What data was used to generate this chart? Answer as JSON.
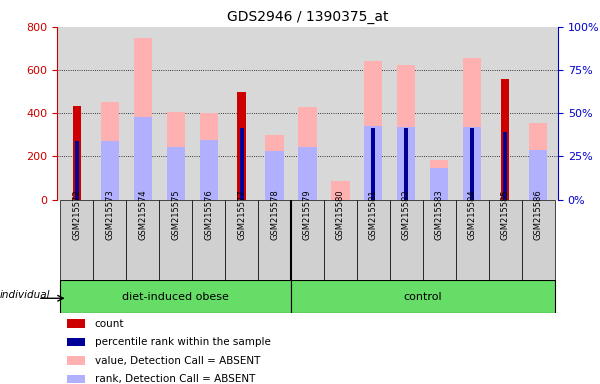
{
  "title": "GDS2946 / 1390375_at",
  "categories": [
    "GSM215572",
    "GSM215573",
    "GSM215574",
    "GSM215575",
    "GSM215576",
    "GSM215577",
    "GSM215578",
    "GSM215579",
    "GSM215580",
    "GSM215581",
    "GSM215582",
    "GSM215583",
    "GSM215584",
    "GSM215585",
    "GSM215586"
  ],
  "groups": [
    {
      "label": "diet-induced obese",
      "start": 0,
      "end": 6
    },
    {
      "label": "control",
      "start": 7,
      "end": 14
    }
  ],
  "count_values": [
    435,
    0,
    0,
    0,
    0,
    500,
    0,
    0,
    0,
    0,
    0,
    0,
    0,
    560,
    0
  ],
  "percentile_values": [
    270,
    0,
    0,
    0,
    0,
    330,
    0,
    0,
    0,
    330,
    330,
    0,
    330,
    315,
    0
  ],
  "absent_value_bars": [
    0,
    450,
    750,
    405,
    400,
    0,
    300,
    430,
    85,
    640,
    625,
    185,
    655,
    0,
    355
  ],
  "absent_rank_bars": [
    0,
    270,
    385,
    245,
    275,
    0,
    225,
    245,
    0,
    340,
    335,
    145,
    335,
    0,
    230
  ],
  "ylim_left": [
    0,
    800
  ],
  "ylim_right": [
    0,
    100
  ],
  "yticks_left": [
    0,
    200,
    400,
    600,
    800
  ],
  "yticks_right": [
    0,
    25,
    50,
    75,
    100
  ],
  "left_axis_color": "#cc0000",
  "right_axis_color": "#0000cc",
  "count_color": "#cc0000",
  "percentile_color": "#000099",
  "absent_value_color": "#ffb0b0",
  "absent_rank_color": "#b0b0ff",
  "plot_bg_color": "#d8d8d8",
  "grid_color": "#000000",
  "cell_bg_color": "#d0d0d0",
  "group_color": "#66dd66",
  "legend_items": [
    {
      "label": "count",
      "color": "#cc0000"
    },
    {
      "label": "percentile rank within the sample",
      "color": "#000099"
    },
    {
      "label": "value, Detection Call = ABSENT",
      "color": "#ffb0b0"
    },
    {
      "label": "rank, Detection Call = ABSENT",
      "color": "#b0b0ff"
    }
  ],
  "individual_label": "individual",
  "count_bar_width": 0.25,
  "pct_bar_width": 0.12,
  "absent_bar_width": 0.55
}
